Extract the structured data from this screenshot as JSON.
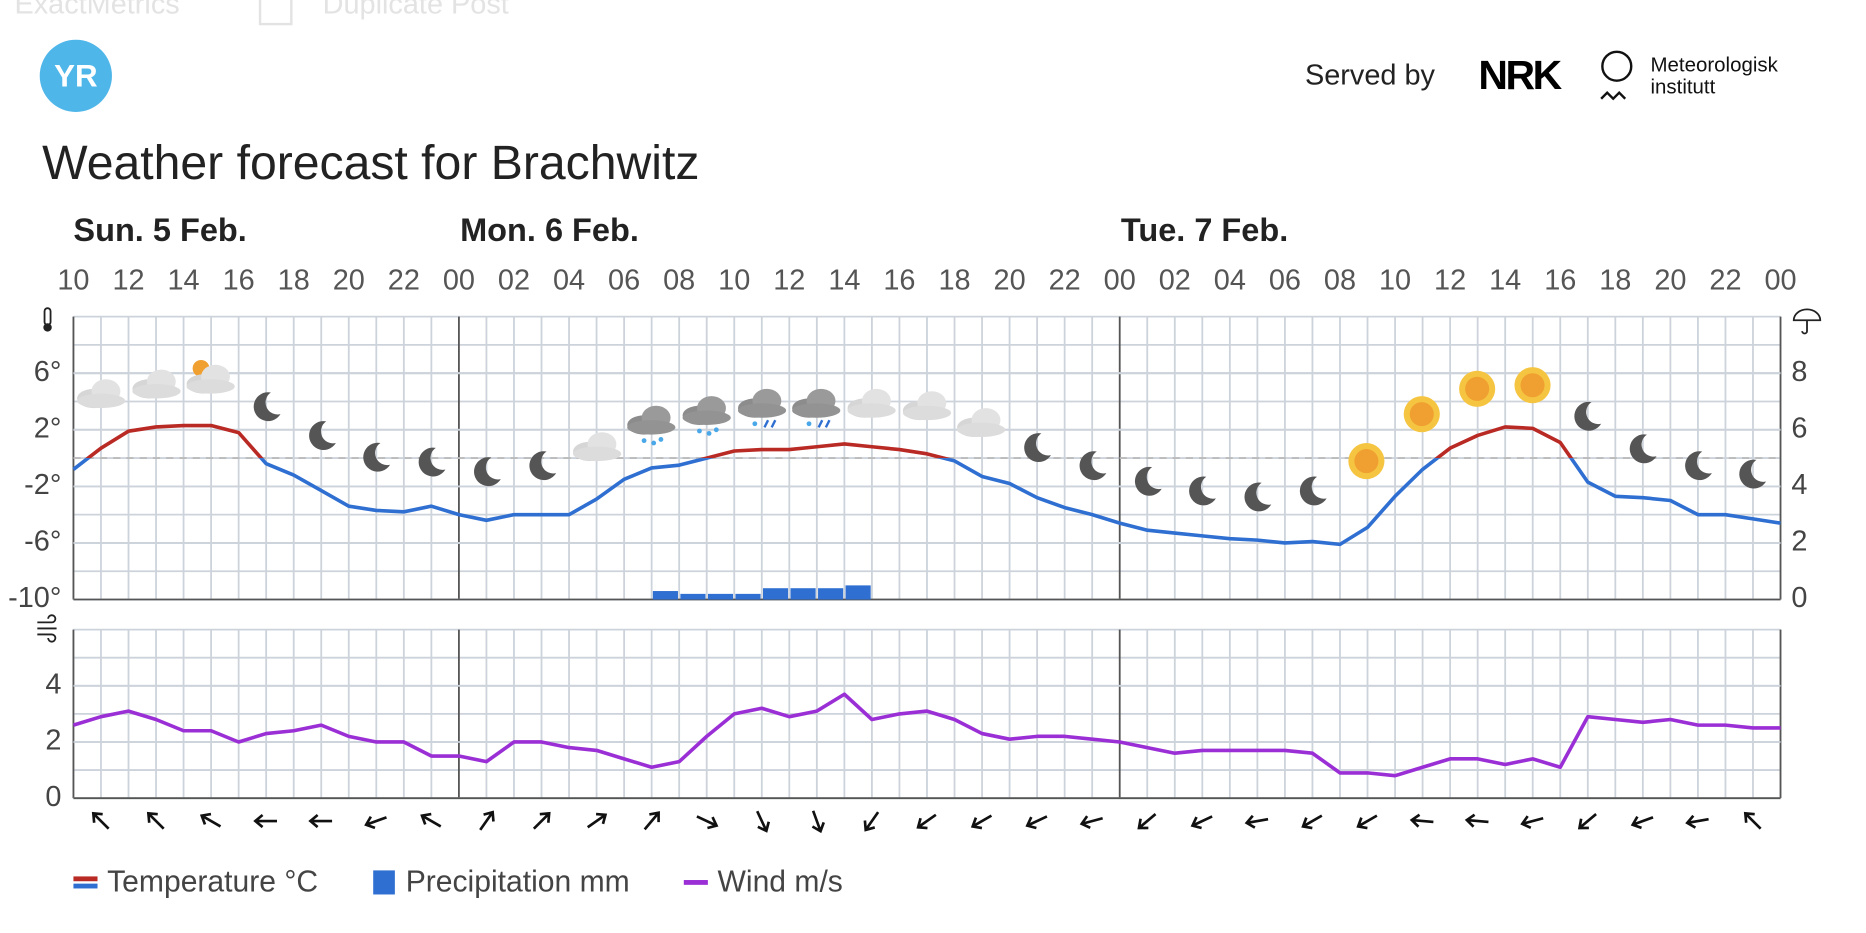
{
  "header": {
    "toolbar": [
      "ExactMetrics",
      "Duplicate Post"
    ],
    "logo": "YR",
    "served_by": "Served by",
    "partner": "NRK",
    "institute": [
      "Meteorologisk",
      "institutt"
    ],
    "title": "Weather forecast for Brachwitz"
  },
  "chart_data": [
    {
      "type": "line",
      "days": [
        "Sun. 5 Feb.",
        "Mon. 6 Feb.",
        "Tue. 7 Feb."
      ],
      "categories": [
        "10",
        null,
        "12",
        null,
        "14",
        null,
        "16",
        null,
        "18",
        null,
        "20",
        null,
        "22",
        null,
        "00",
        null,
        "02",
        null,
        "04",
        null,
        "06",
        null,
        "08",
        null,
        "10",
        null,
        "12",
        null,
        "14",
        null,
        "16",
        null,
        "18",
        null,
        "20",
        null,
        "22",
        null,
        "00",
        null,
        "02",
        null,
        "04",
        null,
        "06",
        null,
        "08",
        null,
        "10",
        null,
        "12",
        null,
        "14",
        null,
        "16",
        null,
        "18",
        null,
        "20",
        null,
        "22",
        null,
        "00"
      ],
      "ylim": [
        -10,
        10
      ],
      "yticks": [
        {
          "value": -10,
          "label": "-10°"
        },
        {
          "value": -6,
          "label": "-6°"
        },
        {
          "value": -2,
          "label": "-2°"
        },
        {
          "value": 2,
          "label": "2°"
        },
        {
          "value": 6,
          "label": "6°"
        }
      ],
      "y2lim": [
        0,
        10
      ],
      "y2ticks": [
        0,
        2,
        4,
        6,
        8
      ],
      "grid": true,
      "series": [
        {
          "name": "Temperature °C",
          "type": "line",
          "color": "#b92a25",
          "color_below_zero": "#2f6fd1",
          "values": [
            -0.8,
            0.7,
            1.9,
            2.2,
            2.3,
            2.3,
            1.8,
            -0.4,
            -1.2,
            -2.3,
            -3.4,
            -3.7,
            -3.8,
            -3.4,
            -4.0,
            -4.4,
            -4.0,
            -4.0,
            -4.0,
            -2.9,
            -1.5,
            -0.7,
            -0.5,
            0.0,
            0.5,
            0.6,
            0.6,
            0.8,
            1.0,
            0.8,
            0.6,
            0.3,
            -0.2,
            -1.3,
            -1.8,
            -2.8,
            -3.5,
            -4.0,
            -4.6,
            -5.1,
            -5.3,
            -5.5,
            -5.7,
            -5.8,
            -6.0,
            -5.9,
            -6.1,
            -4.9,
            -2.7,
            -0.8,
            0.7,
            1.6,
            2.2,
            2.1,
            1.1,
            -1.7,
            -2.7,
            -2.8,
            -3.0,
            -4.0,
            -4.0,
            -4.3,
            -4.6
          ]
        },
        {
          "name": "Precipitation mm",
          "type": "bar",
          "axis": "y2",
          "color": "#2f6fd1",
          "values": [
            0,
            0,
            0,
            0,
            0,
            0,
            0,
            0,
            0,
            0,
            0,
            0,
            0,
            0,
            0,
            0,
            0,
            0,
            0,
            0,
            0,
            0.3,
            0.2,
            0.2,
            0.2,
            0.4,
            0.4,
            0.4,
            0.5,
            0,
            0,
            0,
            0,
            0,
            0,
            0,
            0,
            0,
            0,
            0,
            0,
            0,
            0,
            0,
            0,
            0,
            0,
            0,
            0,
            0,
            0,
            0,
            0,
            0,
            0,
            0,
            0,
            0,
            0,
            0,
            0,
            0,
            0
          ]
        }
      ]
    },
    {
      "type": "line",
      "ylim": [
        0,
        6
      ],
      "yticks": [
        0,
        2,
        4
      ],
      "grid": true,
      "series": [
        {
          "name": "Wind m/s",
          "type": "line",
          "color": "#9b2fd6",
          "values": [
            2.6,
            2.9,
            3.1,
            2.8,
            2.4,
            2.4,
            2.0,
            2.3,
            2.4,
            2.6,
            2.2,
            2.0,
            2.0,
            1.5,
            1.5,
            1.3,
            2.0,
            2.0,
            1.8,
            1.7,
            1.4,
            1.1,
            1.3,
            2.2,
            3.0,
            3.2,
            2.9,
            3.1,
            3.7,
            2.8,
            3.0,
            3.1,
            2.8,
            2.3,
            2.1,
            2.2,
            2.2,
            2.1,
            2.0,
            1.8,
            1.6,
            1.7,
            1.7,
            1.7,
            1.7,
            1.6,
            0.9,
            0.9,
            0.8,
            1.1,
            1.4,
            1.4,
            1.2,
            1.4,
            1.1,
            2.9,
            2.8,
            2.7,
            2.8,
            2.6,
            2.6,
            2.5,
            2.5
          ]
        }
      ],
      "wind_direction": [
        315,
        315,
        300,
        270,
        270,
        250,
        300,
        35,
        45,
        55,
        40,
        115,
        155,
        160,
        215,
        235,
        240,
        245,
        255,
        230,
        245,
        260,
        240,
        240,
        275,
        275,
        255,
        230,
        250,
        260,
        315
      ]
    }
  ]
}
